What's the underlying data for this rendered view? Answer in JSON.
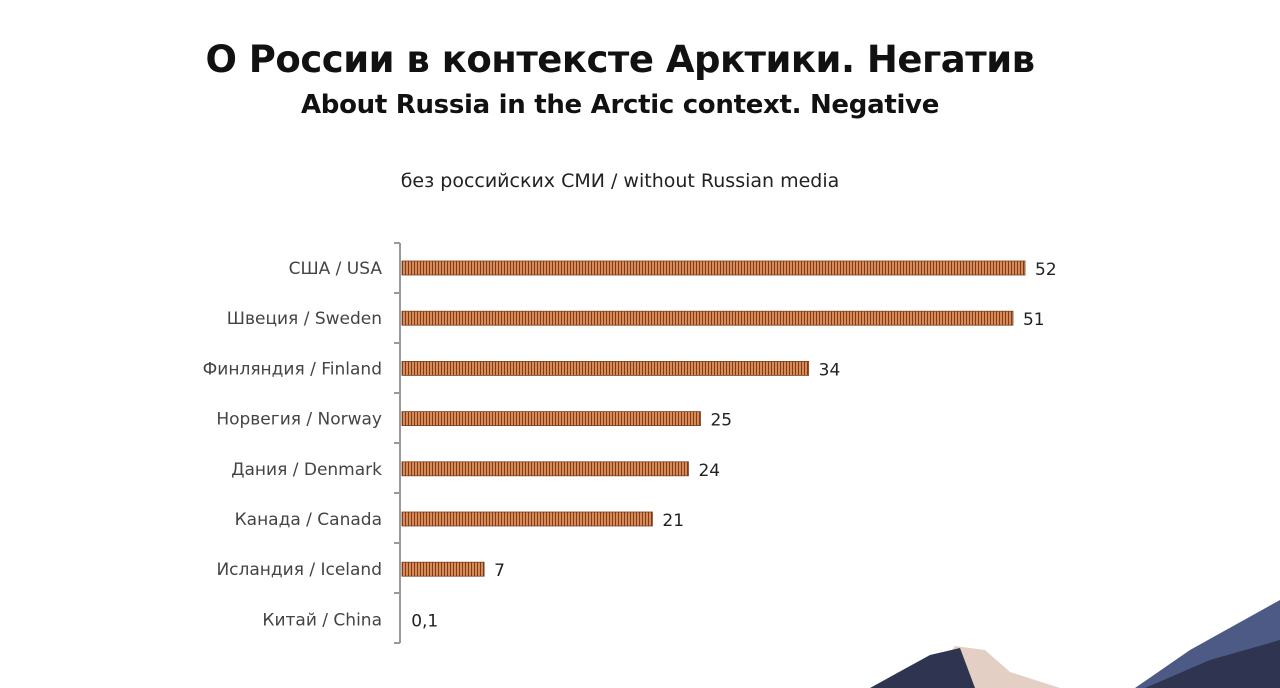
{
  "header": {
    "title_ru": "О России в контексте Арктики. Негатив",
    "title_en": "About Russia in the Arctic context. Negative",
    "subtitle": "без российских СМИ / without Russian media"
  },
  "chart_data": {
    "type": "bar",
    "orientation": "horizontal",
    "title": "О России в контексте Арктики. Негатив",
    "subtitle": "About Russia in the Arctic context. Negative",
    "note": "без российских СМИ / without Russian media",
    "categories": [
      "США / USA",
      "Швеция / Sweden",
      "Финляндия / Finland",
      "Норвегия / Norway",
      "Дания / Denmark",
      "Канада / Canada",
      "Исландия / Iceland",
      "Китай / China"
    ],
    "values": [
      52,
      51,
      34,
      25,
      24,
      21,
      7,
      0.1
    ],
    "value_labels": [
      "52",
      "51",
      "34",
      "25",
      "24",
      "21",
      "7",
      "0,1"
    ],
    "xlim": [
      0,
      52
    ],
    "grid": false,
    "legend": "none",
    "colors": {
      "bar_fill": "#d98a55",
      "bar_stripe": "#7a3d1e",
      "axis": "#9a9a9a",
      "label": "#444444",
      "value": "#222222"
    }
  },
  "decor": {
    "mountain_dark": "#2f3550",
    "mountain_mid": "#4d5a85",
    "mountain_light": "#e3cfc4"
  }
}
